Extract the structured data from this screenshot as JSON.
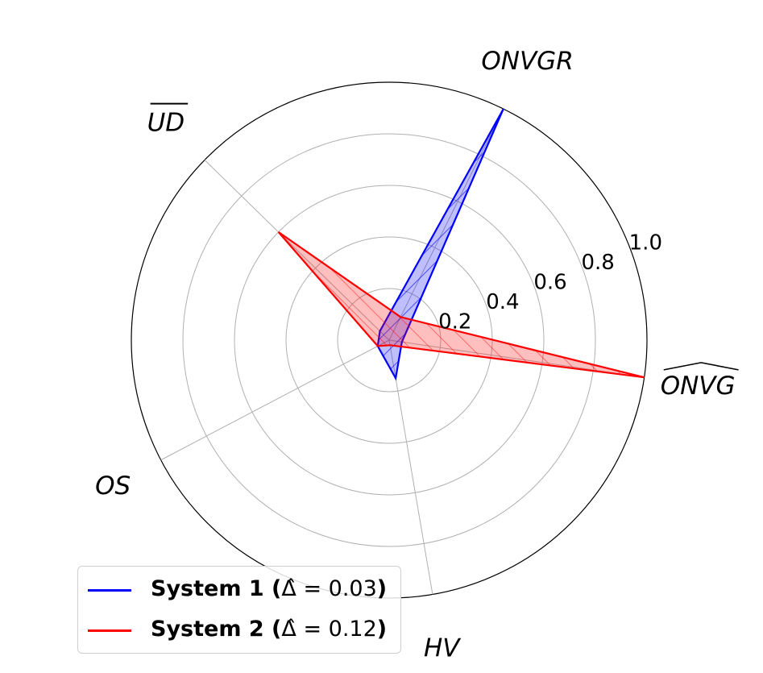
{
  "chart_data": {
    "type": "radar",
    "axes": [
      "ONVG",
      "ONVGR",
      "UD",
      "OS",
      "HV"
    ],
    "axis_accents": [
      "wide-hat",
      "none",
      "overline",
      "none",
      "none"
    ],
    "rlim": [
      0,
      1.0
    ],
    "rticks": [
      0.2,
      0.4,
      0.6,
      0.8,
      1.0
    ],
    "rtick_labels": [
      "0.2",
      "0.4",
      "0.6",
      "0.8",
      "1.0"
    ],
    "grid": true,
    "legend_position": "lower-left",
    "series": [
      {
        "name": "System 1 (Δ̂ = 0.03)",
        "label_bold": "System 1 (",
        "label_math": "Δ̂ = 0.03",
        "label_close": ")",
        "values": [
          0.05,
          1.0,
          0.05,
          0.05,
          0.15
        ],
        "color": "#0000ff",
        "fill": "#0000ff",
        "hatch": "//"
      },
      {
        "name": "System 2 (Δ̂ = 0.12)",
        "label_bold": "System 2 (",
        "label_math": "Δ̂ = 0.12",
        "label_close": ")",
        "values": [
          1.0,
          0.1,
          0.6,
          0.05,
          0.02
        ],
        "color": "#ff0000",
        "fill": "#ff0000",
        "hatch": "\\\\"
      }
    ]
  }
}
